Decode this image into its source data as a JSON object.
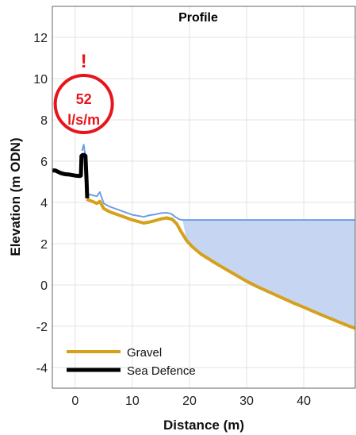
{
  "chart_data": {
    "type": "line",
    "title": "Profile",
    "xlabel": "Distance (m)",
    "ylabel": "Elevation (m ODN)",
    "xlim": [
      -4,
      49
    ],
    "ylim": [
      -5,
      13.5
    ],
    "xticks": [
      0,
      10,
      20,
      30,
      40
    ],
    "yticks": [
      -4,
      -2,
      0,
      2,
      4,
      6,
      8,
      10,
      12
    ],
    "grid": true,
    "legend_position": "bottom-left",
    "alert": {
      "symbol": "!",
      "value": "52",
      "unit": "l/s/m",
      "color": "#e8141b",
      "x": 1.5
    },
    "water_level": 3.15,
    "water": {
      "color": "#6f9ee3",
      "fill": "#c6d6f2",
      "x": [
        1.2,
        1.5,
        1.8,
        2.2,
        3.0,
        3.8,
        4.3,
        5.0,
        6.0,
        8.0,
        10.0,
        12.0,
        13.0,
        14.0,
        15.0,
        16.0,
        16.8,
        17.5,
        18.2,
        18.8,
        49.0
      ],
      "y": [
        6.5,
        6.8,
        6.2,
        4.4,
        4.35,
        4.3,
        4.5,
        3.95,
        3.8,
        3.6,
        3.4,
        3.3,
        3.38,
        3.42,
        3.48,
        3.5,
        3.45,
        3.3,
        3.18,
        3.15,
        3.15
      ]
    },
    "series": [
      {
        "name": "Gravel",
        "color": "#d6a01a",
        "x": [
          2.0,
          2.5,
          3.0,
          3.8,
          4.3,
          5.0,
          6.0,
          8.0,
          10.0,
          12.0,
          13.0,
          14.0,
          15.0,
          16.0,
          17.0,
          17.8,
          18.5,
          19.5,
          20.5,
          22.0,
          24.0,
          26.0,
          28.0,
          30.0,
          32.0,
          34.0,
          36.0,
          38.0,
          40.0,
          42.0,
          44.0,
          46.0,
          48.0,
          49.0
        ],
        "y": [
          4.15,
          4.1,
          4.05,
          3.95,
          4.05,
          3.7,
          3.55,
          3.35,
          3.15,
          3.0,
          3.05,
          3.12,
          3.2,
          3.25,
          3.18,
          2.95,
          2.6,
          2.15,
          1.85,
          1.5,
          1.15,
          0.82,
          0.5,
          0.18,
          -0.1,
          -0.35,
          -0.6,
          -0.85,
          -1.08,
          -1.32,
          -1.55,
          -1.78,
          -2.0,
          -2.1
        ]
      },
      {
        "name": "Sea Defence",
        "color": "#000000",
        "x": [
          -4.0,
          -3.5,
          -2.5,
          -2.0,
          -1.5,
          -1.0,
          0.0,
          0.8,
          1.0,
          1.1,
          1.3,
          1.6,
          1.8,
          2.0,
          2.1
        ],
        "y": [
          5.55,
          5.55,
          5.42,
          5.38,
          5.36,
          5.35,
          5.3,
          5.28,
          5.3,
          6.25,
          6.3,
          6.3,
          6.25,
          5.0,
          4.2
        ]
      }
    ]
  }
}
